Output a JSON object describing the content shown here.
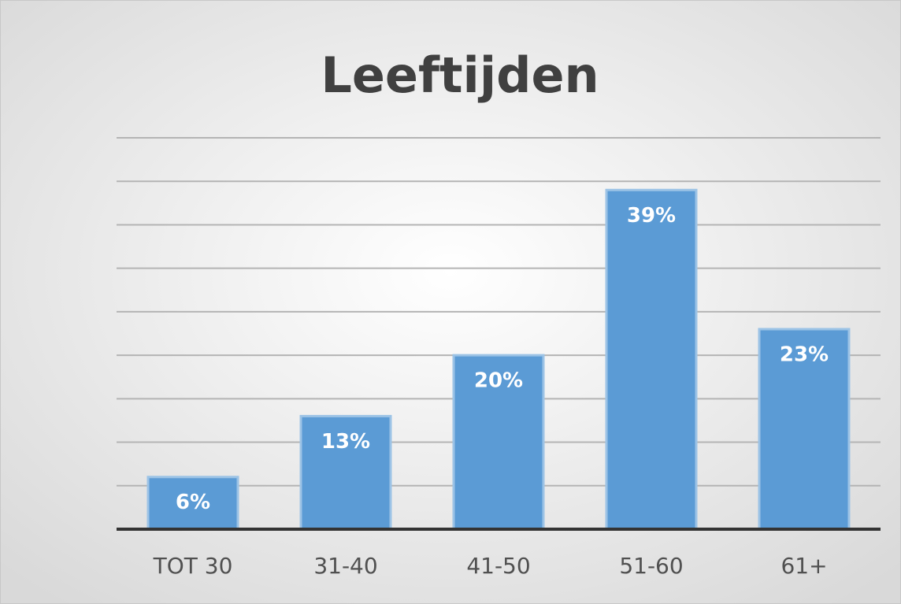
{
  "chart_data": {
    "type": "bar",
    "title": "Leeftijden",
    "categories": [
      "TOT 30",
      "31-40",
      "41-50",
      "51-60",
      "61+"
    ],
    "values": [
      6,
      13,
      20,
      39,
      23
    ],
    "value_labels": [
      "6%",
      "13%",
      "20%",
      "39%",
      "23%"
    ],
    "color": "#5b9bd5",
    "ylim": [
      0,
      45
    ],
    "yticks": [
      0,
      5,
      10,
      15,
      20,
      25,
      30,
      35,
      40,
      45
    ],
    "grid": true
  }
}
